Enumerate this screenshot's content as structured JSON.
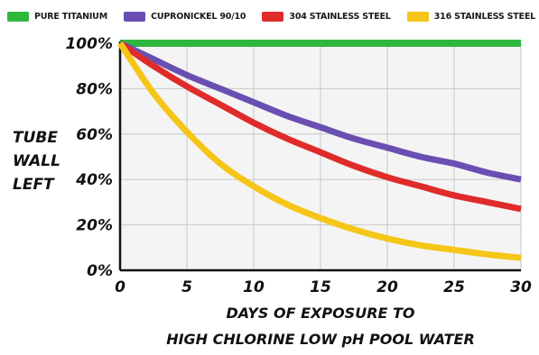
{
  "chart_data": {
    "type": "line",
    "x": [
      0,
      2.5,
      5,
      7.5,
      10,
      12.5,
      15,
      17.5,
      20,
      22.5,
      25,
      27.5,
      30
    ],
    "series": [
      {
        "name": "PURE TITANIUM",
        "color": "#2db83d",
        "values": [
          100,
          100,
          100,
          100,
          100,
          100,
          100,
          100,
          100,
          100,
          100,
          100,
          100
        ]
      },
      {
        "name": "CUPRONICKEL 90/10",
        "color": "#6a4fb3",
        "values": [
          100,
          93,
          86,
          80,
          74,
          68,
          63,
          58,
          54,
          50,
          47,
          43,
          40
        ]
      },
      {
        "name": "304 STAINLESS STEEL",
        "color": "#e02b2b",
        "values": [
          100,
          90,
          81,
          73,
          65,
          58,
          52,
          46,
          41,
          37,
          33,
          30,
          27
        ]
      },
      {
        "name": "316 STAINLESS STEEL",
        "color": "#f5c518",
        "values": [
          100,
          78,
          61,
          47,
          37,
          29,
          23,
          18,
          14,
          11,
          9,
          7,
          5.5
        ]
      }
    ],
    "xticks": [
      "0",
      "5",
      "10",
      "15",
      "20",
      "25",
      "30"
    ],
    "yticks": [
      "0%",
      "20%",
      "40%",
      "60%",
      "80%",
      "100%"
    ],
    "xlabel": [
      "DAYS OF EXPOSURE TO",
      "HIGH CHLORINE LOW pH POOL WATER"
    ],
    "ylabel": [
      "TUBE",
      "WALL",
      "LEFT"
    ],
    "xlim": [
      0,
      30
    ],
    "ylim": [
      0,
      100
    ],
    "grid": true,
    "legend_position": "top"
  }
}
